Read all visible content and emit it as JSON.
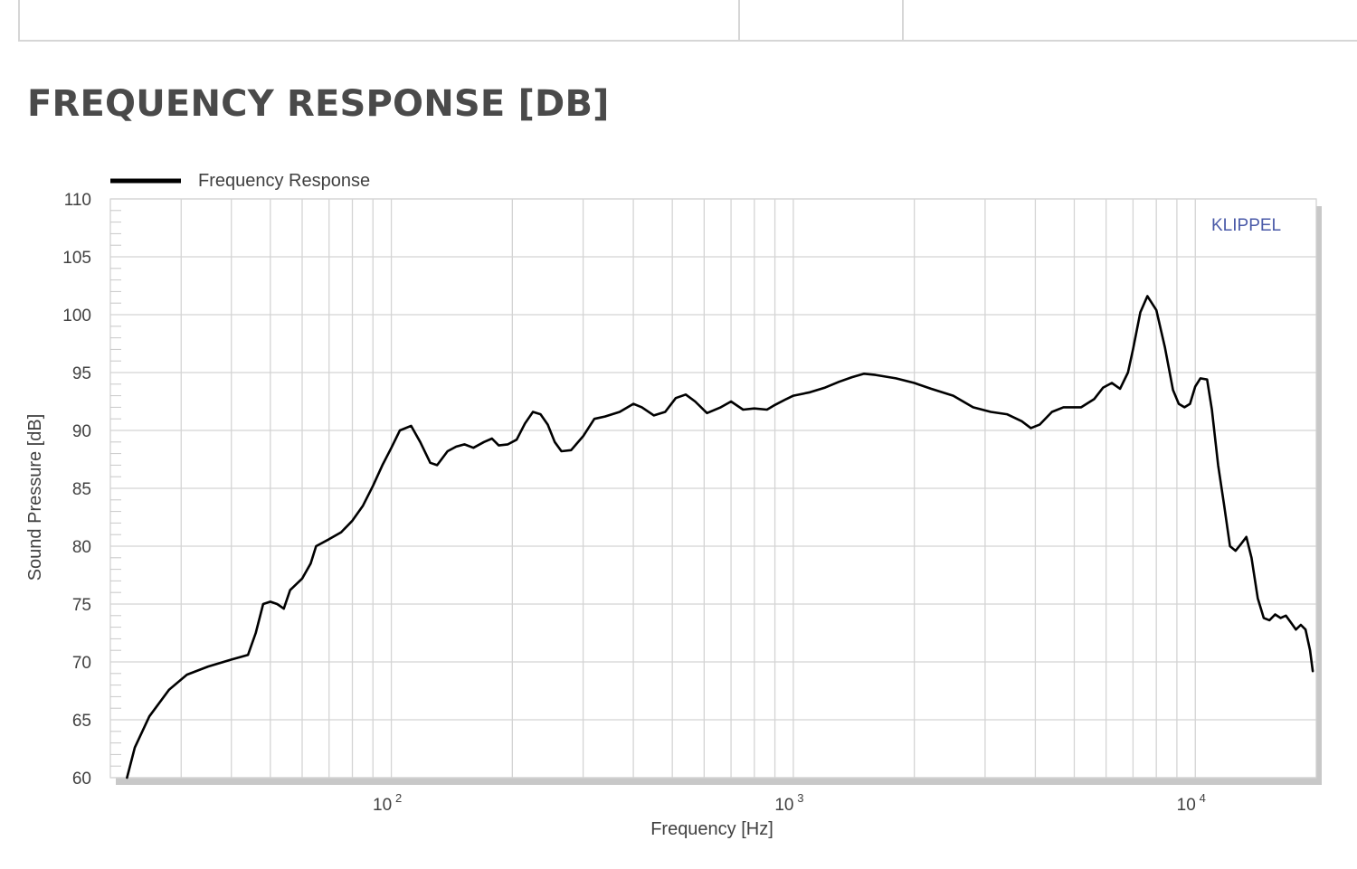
{
  "section_title": "FREQUENCY RESPONSE [DB]",
  "chart_data": {
    "type": "line",
    "title": "",
    "xlabel": "Frequency  [Hz]",
    "ylabel": "Sound Pressure  [dB]",
    "x_scale": "log",
    "xlim": [
      20,
      20000
    ],
    "ylim": [
      60,
      110
    ],
    "y_ticks": [
      60,
      65,
      70,
      75,
      80,
      85,
      90,
      95,
      100,
      105,
      110
    ],
    "x_ticks": [
      {
        "value": 100,
        "base": "10",
        "exp": "2"
      },
      {
        "value": 1000,
        "base": "10",
        "exp": "3"
      },
      {
        "value": 10000,
        "base": "10",
        "exp": "4"
      }
    ],
    "grid": true,
    "legend_position": "top-left",
    "watermark": "KLIPPEL",
    "series": [
      {
        "name": "Frequency Response",
        "color": "#000000",
        "points": [
          [
            22,
            60.0
          ],
          [
            23,
            62.6
          ],
          [
            25,
            65.3
          ],
          [
            28,
            67.6
          ],
          [
            31,
            68.9
          ],
          [
            35,
            69.6
          ],
          [
            40,
            70.2
          ],
          [
            44,
            70.6
          ],
          [
            46,
            72.5
          ],
          [
            48,
            75.0
          ],
          [
            50,
            75.2
          ],
          [
            52,
            75.0
          ],
          [
            54,
            74.6
          ],
          [
            56,
            76.2
          ],
          [
            60,
            77.2
          ],
          [
            63,
            78.5
          ],
          [
            65,
            80.0
          ],
          [
            70,
            80.6
          ],
          [
            75,
            81.2
          ],
          [
            80,
            82.2
          ],
          [
            85,
            83.5
          ],
          [
            90,
            85.2
          ],
          [
            95,
            87.0
          ],
          [
            100,
            88.5
          ],
          [
            105,
            90.0
          ],
          [
            112,
            90.4
          ],
          [
            118,
            89.0
          ],
          [
            125,
            87.2
          ],
          [
            130,
            87.0
          ],
          [
            138,
            88.2
          ],
          [
            145,
            88.6
          ],
          [
            152,
            88.8
          ],
          [
            160,
            88.5
          ],
          [
            170,
            89.0
          ],
          [
            178,
            89.3
          ],
          [
            185,
            88.7
          ],
          [
            195,
            88.8
          ],
          [
            205,
            89.2
          ],
          [
            215,
            90.6
          ],
          [
            225,
            91.6
          ],
          [
            235,
            91.4
          ],
          [
            245,
            90.5
          ],
          [
            255,
            89.0
          ],
          [
            265,
            88.2
          ],
          [
            280,
            88.3
          ],
          [
            300,
            89.5
          ],
          [
            320,
            91.0
          ],
          [
            340,
            91.2
          ],
          [
            370,
            91.6
          ],
          [
            400,
            92.3
          ],
          [
            420,
            92.0
          ],
          [
            450,
            91.3
          ],
          [
            480,
            91.6
          ],
          [
            510,
            92.8
          ],
          [
            540,
            93.1
          ],
          [
            570,
            92.5
          ],
          [
            610,
            91.5
          ],
          [
            660,
            92.0
          ],
          [
            700,
            92.5
          ],
          [
            750,
            91.8
          ],
          [
            800,
            91.9
          ],
          [
            860,
            91.8
          ],
          [
            900,
            92.2
          ],
          [
            960,
            92.7
          ],
          [
            1000,
            93.0
          ],
          [
            1100,
            93.3
          ],
          [
            1200,
            93.7
          ],
          [
            1300,
            94.2
          ],
          [
            1400,
            94.6
          ],
          [
            1500,
            94.9
          ],
          [
            1600,
            94.8
          ],
          [
            1800,
            94.5
          ],
          [
            2000,
            94.1
          ],
          [
            2200,
            93.6
          ],
          [
            2500,
            93.0
          ],
          [
            2800,
            92.0
          ],
          [
            3100,
            91.6
          ],
          [
            3400,
            91.4
          ],
          [
            3700,
            90.8
          ],
          [
            3900,
            90.2
          ],
          [
            4100,
            90.5
          ],
          [
            4400,
            91.6
          ],
          [
            4700,
            92.0
          ],
          [
            5200,
            92.0
          ],
          [
            5600,
            92.7
          ],
          [
            5900,
            93.7
          ],
          [
            6200,
            94.1
          ],
          [
            6500,
            93.6
          ],
          [
            6800,
            95.0
          ],
          [
            7000,
            97.0
          ],
          [
            7300,
            100.2
          ],
          [
            7600,
            101.6
          ],
          [
            8000,
            100.4
          ],
          [
            8400,
            97.2
          ],
          [
            8800,
            93.5
          ],
          [
            9100,
            92.3
          ],
          [
            9400,
            92.0
          ],
          [
            9700,
            92.3
          ],
          [
            10000,
            93.8
          ],
          [
            10300,
            94.5
          ],
          [
            10700,
            94.4
          ],
          [
            11000,
            91.8
          ],
          [
            11400,
            87.0
          ],
          [
            11800,
            83.5
          ],
          [
            12200,
            80.0
          ],
          [
            12600,
            79.6
          ],
          [
            13000,
            80.2
          ],
          [
            13400,
            80.8
          ],
          [
            13800,
            79.0
          ],
          [
            14300,
            75.5
          ],
          [
            14800,
            73.8
          ],
          [
            15300,
            73.6
          ],
          [
            15800,
            74.1
          ],
          [
            16300,
            73.8
          ],
          [
            16800,
            74.0
          ],
          [
            17300,
            73.4
          ],
          [
            17800,
            72.8
          ],
          [
            18300,
            73.2
          ],
          [
            18800,
            72.8
          ],
          [
            19300,
            71.0
          ],
          [
            19600,
            69.2
          ]
        ]
      }
    ]
  }
}
